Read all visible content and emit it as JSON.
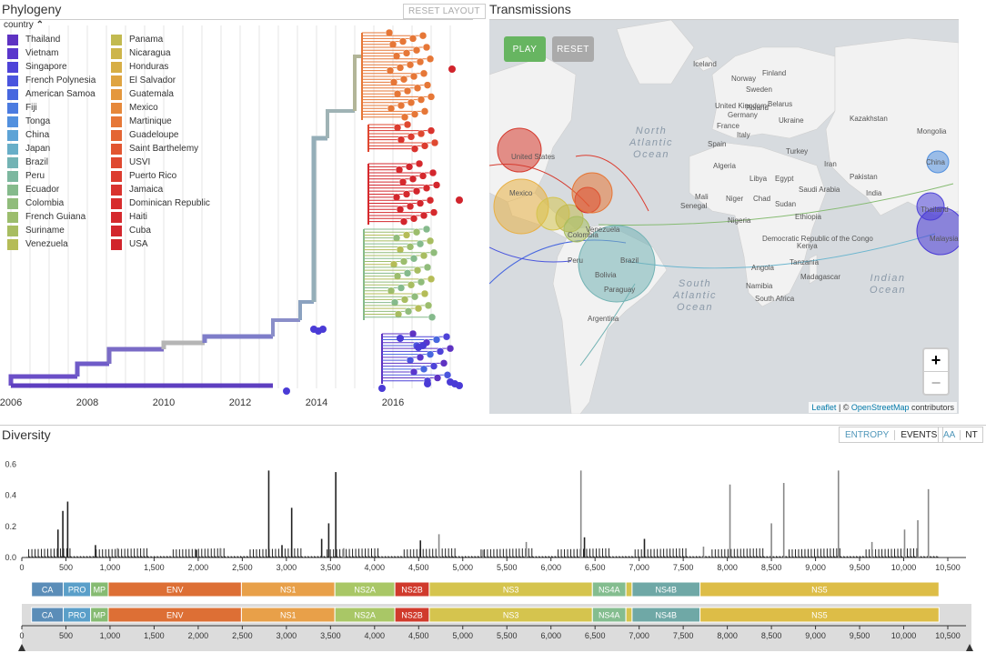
{
  "phylogeny": {
    "title": "Phylogeny",
    "reset_label": "RESET LAYOUT",
    "legend_title": "country",
    "legend_toggle": "⌃",
    "legend_col1": [
      {
        "name": "Thailand",
        "color": "#5e32c2"
      },
      {
        "name": "Vietnam",
        "color": "#5a36cc"
      },
      {
        "name": "Singapore",
        "color": "#4e43d8"
      },
      {
        "name": "French Polynesia",
        "color": "#4a55de"
      },
      {
        "name": "American Samoa",
        "color": "#4767df"
      },
      {
        "name": "Fiji",
        "color": "#4b7be0"
      },
      {
        "name": "Tonga",
        "color": "#5290de"
      },
      {
        "name": "China",
        "color": "#5da3d6"
      },
      {
        "name": "Japan",
        "color": "#68aec8"
      },
      {
        "name": "Brazil",
        "color": "#73b3b4"
      },
      {
        "name": "Peru",
        "color": "#7cb79f"
      },
      {
        "name": "Ecuador",
        "color": "#85ba8c"
      },
      {
        "name": "Colombia",
        "color": "#90bc7b"
      },
      {
        "name": "French Guiana",
        "color": "#9cbd6d"
      },
      {
        "name": "Suriname",
        "color": "#a8bd61"
      },
      {
        "name": "Venezuela",
        "color": "#b5bc57"
      }
    ],
    "legend_col2": [
      {
        "name": "Panama",
        "color": "#c2ba50"
      },
      {
        "name": "Nicaragua",
        "color": "#cdb54a"
      },
      {
        "name": "Honduras",
        "color": "#d7ae45"
      },
      {
        "name": "El Salvador",
        "color": "#dfa441"
      },
      {
        "name": "Guatemala",
        "color": "#e4973d"
      },
      {
        "name": "Mexico",
        "color": "#e6883a"
      },
      {
        "name": "Martinique",
        "color": "#e67737"
      },
      {
        "name": "Guadeloupe",
        "color": "#e46634"
      },
      {
        "name": "Saint Barthelemy",
        "color": "#e25631"
      },
      {
        "name": "USVI",
        "color": "#df4830"
      },
      {
        "name": "Puerto Rico",
        "color": "#dc3c2f"
      },
      {
        "name": "Jamaica",
        "color": "#d9332e"
      },
      {
        "name": "Dominican Republic",
        "color": "#d72c2d"
      },
      {
        "name": "Haiti",
        "color": "#d5292d"
      },
      {
        "name": "Cuba",
        "color": "#d3262d"
      },
      {
        "name": "USA",
        "color": "#d1242c"
      }
    ],
    "x_ticks": [
      "2006",
      "2008",
      "2010",
      "2012",
      "2014",
      "2016"
    ]
  },
  "transmissions": {
    "title": "Transmissions",
    "play_label": "PLAY",
    "reset_label": "RESET",
    "zoom_in": "+",
    "zoom_out": "−",
    "attribution_leaflet": "Leaflet",
    "attribution_sep": " | © ",
    "attribution_osm": "OpenStreetMap",
    "attribution_tail": " contributors",
    "oceans": {
      "north_atlantic": "North Atlantic Ocean",
      "south_atlantic": "South Atlantic Ocean",
      "indian": "Indian Ocean"
    },
    "places": [
      "Iceland",
      "Norway",
      "Sweden",
      "Finland",
      "United Kingdom",
      "Poland",
      "Belarus",
      "Ukraine",
      "Germany",
      "France",
      "Spain",
      "Italy",
      "Turkey",
      "Kazakhstan",
      "Mongolia",
      "Algeria",
      "Libya",
      "Egypt",
      "Mali",
      "Niger",
      "Chad",
      "Sudan",
      "Nigeria",
      "Ethiopia",
      "Kenya",
      "Tanzania",
      "Angola",
      "Namibia",
      "South Africa",
      "Madagascar",
      "Senegal",
      "Saudi Arabia",
      "Iran",
      "India",
      "Pakistan",
      "Democratic Republic of the Congo",
      "Brazil",
      "Bolivia",
      "Peru",
      "Paraguay",
      "Argentina",
      "Venezuela",
      "Colombia",
      "United States",
      "Mexico",
      "China",
      "Thailand",
      "Malaysia"
    ]
  },
  "diversity": {
    "title": "Diversity",
    "toggle_entropy": "ENTROPY",
    "toggle_events": "EVENTS",
    "toggle_aa": "AA",
    "toggle_nt": "NT",
    "y_ticks": [
      "0.0",
      "0.2",
      "0.4",
      "0.6"
    ],
    "x_ticks": [
      "0",
      "500",
      "1,000",
      "1,500",
      "2,000",
      "2,500",
      "3,000",
      "3,500",
      "4,000",
      "4,500",
      "5,000",
      "5,500",
      "6,000",
      "6,500",
      "7,000",
      "7,500",
      "8,000",
      "8,500",
      "9,000",
      "9,500",
      "10,000",
      "10,500"
    ],
    "genes": [
      {
        "name": "CA",
        "start": 110,
        "end": 470,
        "color": "#5b8db8"
      },
      {
        "name": "PRO",
        "start": 470,
        "end": 780,
        "color": "#5a9fc9"
      },
      {
        "name": "MP",
        "start": 780,
        "end": 980,
        "color": "#86bb72"
      },
      {
        "name": "ENV",
        "start": 980,
        "end": 2490,
        "color": "#dd6f35"
      },
      {
        "name": "NS1",
        "start": 2490,
        "end": 3550,
        "color": "#e8a049"
      },
      {
        "name": "NS2A",
        "start": 3550,
        "end": 4230,
        "color": "#a9c766"
      },
      {
        "name": "NS2B",
        "start": 4230,
        "end": 4620,
        "color": "#d03a2c"
      },
      {
        "name": "NS3",
        "start": 4620,
        "end": 6470,
        "color": "#d5c44e"
      },
      {
        "name": "NS4A",
        "start": 6470,
        "end": 6850,
        "color": "#84bd8f"
      },
      {
        "name": "",
        "start": 6850,
        "end": 6920,
        "color": "#d5c44e"
      },
      {
        "name": "NS4B",
        "start": 6920,
        "end": 7690,
        "color": "#6fa8a6"
      },
      {
        "name": "NS5",
        "start": 7690,
        "end": 10400,
        "color": "#ddbd47"
      }
    ],
    "peaks": [
      {
        "pos": 410,
        "v": 0.18,
        "c": "#222"
      },
      {
        "pos": 465,
        "v": 0.3,
        "c": "#222"
      },
      {
        "pos": 520,
        "v": 0.36,
        "c": "#222"
      },
      {
        "pos": 835,
        "v": 0.08,
        "c": "#222"
      },
      {
        "pos": 1085,
        "v": 0.06,
        "c": "#888"
      },
      {
        "pos": 2250,
        "v": 0.06,
        "c": "#888"
      },
      {
        "pos": 2800,
        "v": 0.56,
        "c": "#222"
      },
      {
        "pos": 2950,
        "v": 0.08,
        "c": "#222"
      },
      {
        "pos": 3060,
        "v": 0.32,
        "c": "#222"
      },
      {
        "pos": 3400,
        "v": 0.12,
        "c": "#222"
      },
      {
        "pos": 3480,
        "v": 0.22,
        "c": "#222"
      },
      {
        "pos": 3560,
        "v": 0.55,
        "c": "#222"
      },
      {
        "pos": 3650,
        "v": 0.06,
        "c": "#888"
      },
      {
        "pos": 4520,
        "v": 0.11,
        "c": "#222"
      },
      {
        "pos": 4730,
        "v": 0.15,
        "c": "#888"
      },
      {
        "pos": 5720,
        "v": 0.1,
        "c": "#888"
      },
      {
        "pos": 6340,
        "v": 0.56,
        "c": "#888"
      },
      {
        "pos": 6380,
        "v": 0.13,
        "c": "#222"
      },
      {
        "pos": 7060,
        "v": 0.12,
        "c": "#222"
      },
      {
        "pos": 7730,
        "v": 0.07,
        "c": "#888"
      },
      {
        "pos": 8030,
        "v": 0.47,
        "c": "#888"
      },
      {
        "pos": 8500,
        "v": 0.22,
        "c": "#888"
      },
      {
        "pos": 8640,
        "v": 0.48,
        "c": "#888"
      },
      {
        "pos": 9260,
        "v": 0.56,
        "c": "#888"
      },
      {
        "pos": 9640,
        "v": 0.1,
        "c": "#888"
      },
      {
        "pos": 10010,
        "v": 0.18,
        "c": "#888"
      },
      {
        "pos": 10160,
        "v": 0.24,
        "c": "#888"
      },
      {
        "pos": 10280,
        "v": 0.44,
        "c": "#888"
      },
      {
        "pos": 1980,
        "v": 0.05,
        "c": "#222"
      },
      {
        "pos": 5230,
        "v": 0.05,
        "c": "#888"
      }
    ]
  },
  "colors": {
    "accent": "#5097ba",
    "play": "#67b561",
    "reset": "#aaaaaa"
  }
}
